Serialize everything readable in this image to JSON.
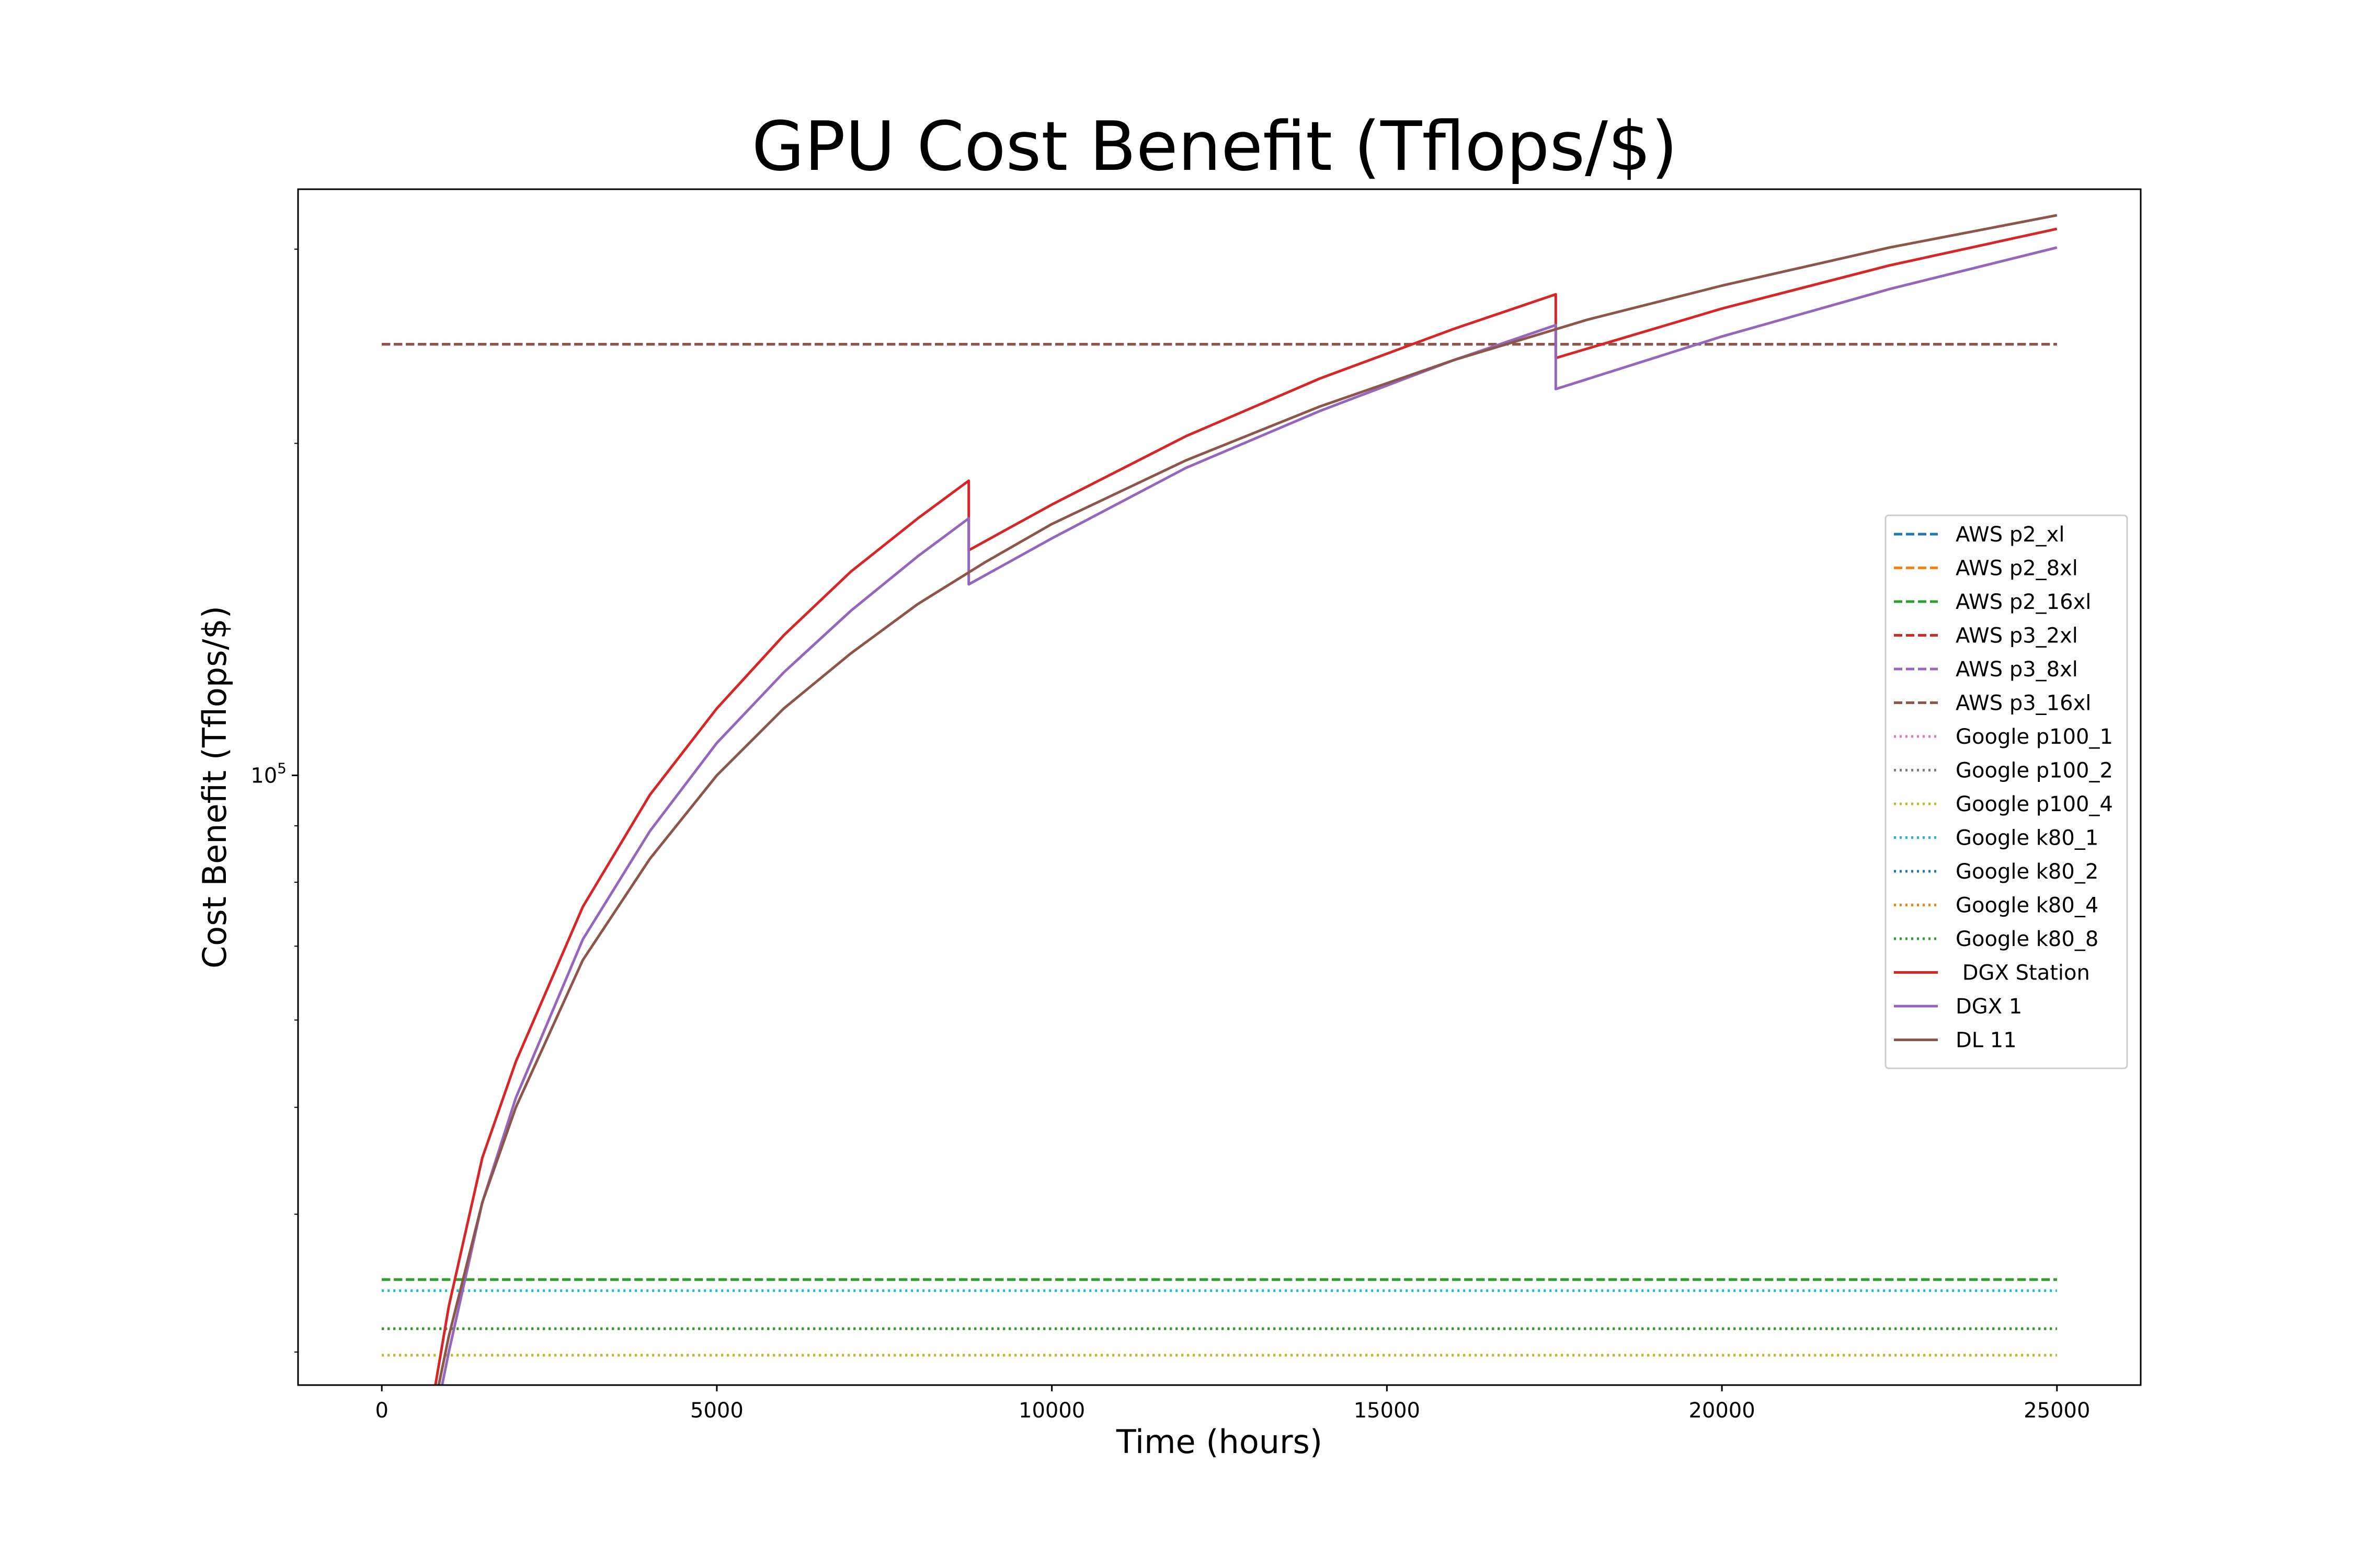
{
  "chart_data": {
    "type": "line",
    "title": "GPU Cost Benefit (Tflops/$)",
    "xlabel": "Time (hours)",
    "ylabel": "Cost Benefit (Tflops/$)",
    "xlim": [
      -1250,
      26250
    ],
    "ylim": [
      28000,
      340000
    ],
    "yscale": "log",
    "x_ticks": [
      0,
      5000,
      10000,
      15000,
      20000,
      25000
    ],
    "x_tick_labels": [
      "0",
      "5000",
      "10000",
      "15000",
      "20000",
      "25000"
    ],
    "y_major_ticks": [
      100000
    ],
    "y_major_tick_labels": [
      "10^5"
    ],
    "y_minor_ticks": [
      30000,
      40000,
      50000,
      60000,
      70000,
      80000,
      90000,
      200000,
      300000
    ],
    "grid": false,
    "legend_position": "center-right",
    "series": [
      {
        "name": "AWS p2_xl",
        "style": "dashed",
        "color": "#1f77b4",
        "x": [
          0,
          25000
        ],
        "values": [
          34900,
          34900
        ]
      },
      {
        "name": "AWS p2_8xl",
        "style": "dashed",
        "color": "#ff7f0e",
        "x": [
          0,
          25000
        ],
        "values": [
          34900,
          34900
        ]
      },
      {
        "name": "AWS p2_16xl",
        "style": "dashed",
        "color": "#2ca02c",
        "x": [
          0,
          25000
        ],
        "values": [
          34900,
          34900
        ]
      },
      {
        "name": "AWS p3_2xl",
        "style": "dashed",
        "color": "#d62728",
        "x": [
          0,
          25000
        ],
        "values": [
          246000,
          246000
        ]
      },
      {
        "name": "AWS p3_8xl",
        "style": "dashed",
        "color": "#9467bd",
        "x": [
          0,
          25000
        ],
        "values": [
          246000,
          246000
        ]
      },
      {
        "name": "AWS p3_16xl",
        "style": "dashed",
        "color": "#8c564b",
        "x": [
          0,
          25000
        ],
        "values": [
          246000,
          246000
        ]
      },
      {
        "name": "Google p100_1",
        "style": "dotted",
        "color": "#e377c2",
        "x": [
          0,
          25000
        ],
        "values": [
          29800,
          29800
        ]
      },
      {
        "name": "Google p100_2",
        "style": "dotted",
        "color": "#7f7f7f",
        "x": [
          0,
          25000
        ],
        "values": [
          31500,
          31500
        ]
      },
      {
        "name": "Google p100_4",
        "style": "dotted",
        "color": "#bcbd22",
        "x": [
          0,
          25000
        ],
        "values": [
          29800,
          29800
        ]
      },
      {
        "name": "Google k80_1",
        "style": "dotted",
        "color": "#17becf",
        "x": [
          0,
          25000
        ],
        "values": [
          34100,
          34100
        ]
      },
      {
        "name": "Google k80_2",
        "style": "dotted",
        "color": "#1f77b4",
        "x": [
          0,
          25000
        ],
        "values": [
          31500,
          31500
        ]
      },
      {
        "name": "Google k80_4",
        "style": "dotted",
        "color": "#ff7f0e",
        "x": [
          0,
          25000
        ],
        "values": [
          31500,
          31500
        ]
      },
      {
        "name": "Google k80_8",
        "style": "dotted",
        "color": "#2ca02c",
        "x": [
          0,
          25000
        ],
        "values": [
          31500,
          31500
        ]
      },
      {
        "name": " DGX Station",
        "style": "solid",
        "color": "#d62728",
        "x": [
          800,
          1000,
          1500,
          2000,
          3000,
          4000,
          5000,
          6000,
          7000,
          8000,
          8760,
          8760,
          10000,
          12000,
          14000,
          16000,
          17520,
          17520,
          20000,
          22500,
          25000
        ],
        "values": [
          28000,
          33000,
          45000,
          55000,
          76000,
          96000,
          115000,
          134000,
          153000,
          171000,
          185000,
          160000,
          176000,
          203000,
          229000,
          254000,
          273000,
          239000,
          265000,
          290000,
          313000
        ]
      },
      {
        "name": "DGX 1",
        "style": "solid",
        "color": "#9467bd",
        "x": [
          900,
          1000,
          1500,
          2000,
          3000,
          4000,
          5000,
          6000,
          7000,
          8000,
          8760,
          8760,
          10000,
          12000,
          14000,
          16000,
          17520,
          17520,
          20000,
          22500,
          25000
        ],
        "values": [
          28000,
          30000,
          41000,
          51000,
          71000,
          89000,
          107000,
          124000,
          141000,
          158000,
          171000,
          149000,
          164000,
          190000,
          214000,
          238000,
          256000,
          224000,
          250000,
          276000,
          301000
        ]
      },
      {
        "name": "DL 11",
        "style": "solid",
        "color": "#8c564b",
        "x": [
          850,
          1000,
          1500,
          2000,
          3000,
          4000,
          5000,
          6000,
          7000,
          8000,
          9000,
          10000,
          12000,
          14000,
          16000,
          18000,
          20000,
          22500,
          25000
        ],
        "values": [
          28000,
          31000,
          41000,
          50000,
          68000,
          84000,
          100000,
          115000,
          129000,
          143000,
          156000,
          169000,
          193000,
          216000,
          238000,
          259000,
          278000,
          301000,
          322000
        ]
      }
    ]
  }
}
